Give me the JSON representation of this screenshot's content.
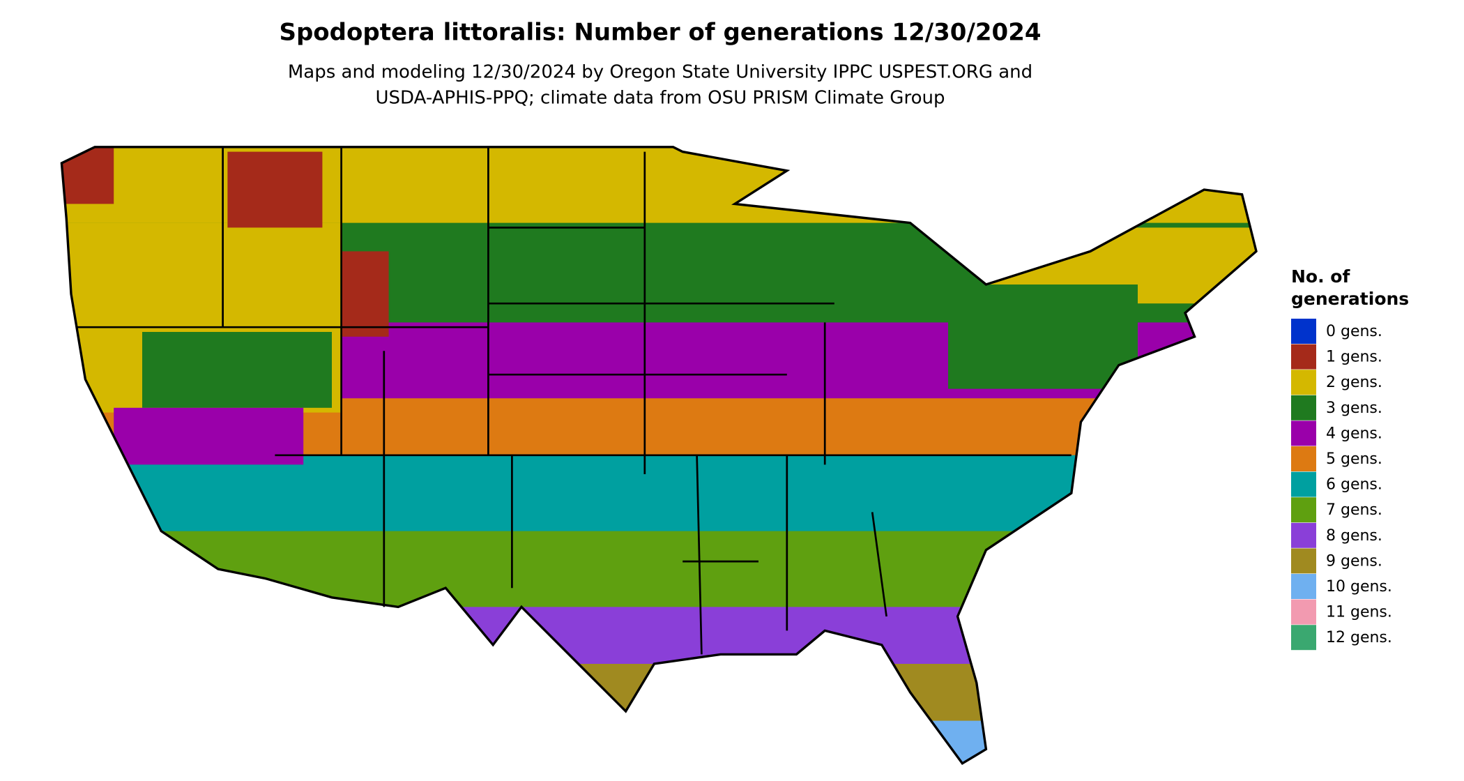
{
  "title": "Spodoptera littoralis: Number of generations 12/30/2024",
  "subtitle": [
    "Maps and modeling 12/30/2024 by Oregon State University IPPC USPEST.ORG and",
    "USDA-APHIS-PPQ; climate data from OSU PRISM Climate Group"
  ],
  "legend": {
    "title": [
      "No. of",
      "generations"
    ],
    "items": [
      {
        "label": "0 gens.",
        "color": "#0033cc"
      },
      {
        "label": "1 gens.",
        "color": "#a52a1a"
      },
      {
        "label": "2 gens.",
        "color": "#d4b800"
      },
      {
        "label": "3 gens.",
        "color": "#1f7a1f"
      },
      {
        "label": "4 gens.",
        "color": "#9a00aa"
      },
      {
        "label": "5 gens.",
        "color": "#dd7a12"
      },
      {
        "label": "6 gens.",
        "color": "#00a0a0"
      },
      {
        "label": "7 gens.",
        "color": "#5fa010"
      },
      {
        "label": "8 gens.",
        "color": "#8a3fd8"
      },
      {
        "label": "9 gens.",
        "color": "#a08a20"
      },
      {
        "label": "10 gens.",
        "color": "#6fb0f0"
      },
      {
        "label": "11 gens.",
        "color": "#f29ab0"
      },
      {
        "label": "12 gens.",
        "color": "#3aa870"
      }
    ]
  }
}
